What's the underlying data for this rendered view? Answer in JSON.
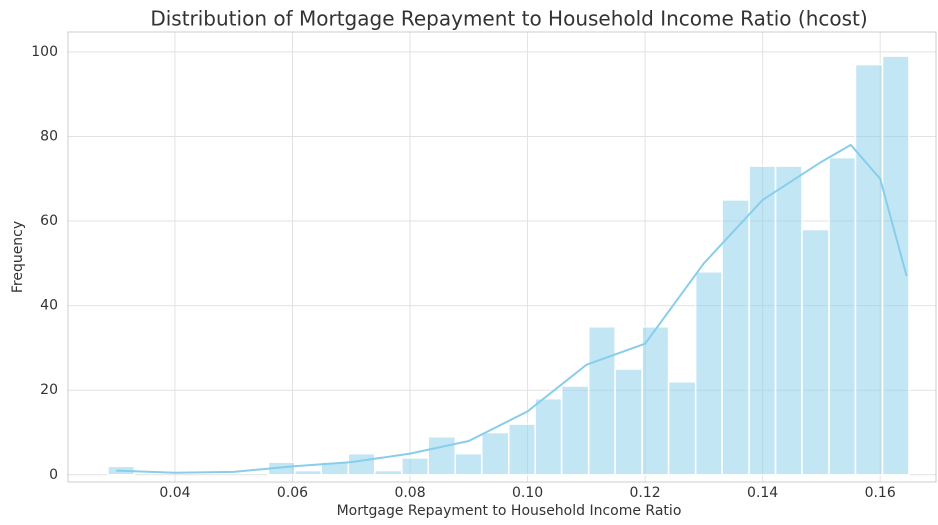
{
  "chart_data": {
    "type": "histogram",
    "title": "Distribution of Mortgage Repayment to Household Income Ratio (hcost)",
    "xlabel": "Mortgage Repayment to Household Income Ratio",
    "ylabel": "Frequency",
    "bins": [
      0.0286,
      0.0331,
      0.0377,
      0.0422,
      0.0468,
      0.0513,
      0.0559,
      0.0604,
      0.0649,
      0.0695,
      0.074,
      0.0786,
      0.0831,
      0.0877,
      0.0922,
      0.0968,
      0.1013,
      0.1058,
      0.1104,
      0.1149,
      0.1195,
      0.124,
      0.1286,
      0.1331,
      0.1377,
      0.1422,
      0.1467,
      0.1513,
      0.1558,
      0.1604,
      0.1649
    ],
    "counts": [
      2,
      0,
      0,
      0,
      0,
      0,
      3,
      1,
      3,
      5,
      1,
      4,
      9,
      5,
      10,
      12,
      18,
      21,
      35,
      25,
      35,
      22,
      48,
      65,
      73,
      73,
      58,
      75,
      97,
      99
    ],
    "color": "#87ceeb",
    "kde": {
      "color": "#87ceeb",
      "x": [
        0.03,
        0.04,
        0.05,
        0.06,
        0.07,
        0.08,
        0.09,
        0.1,
        0.11,
        0.12,
        0.13,
        0.14,
        0.15,
        0.155,
        0.16,
        0.1645
      ],
      "values": [
        1,
        0.5,
        0.7,
        2,
        3,
        5,
        8,
        15,
        26,
        31,
        50,
        65,
        74,
        78,
        70,
        47
      ]
    },
    "xlim": [
      0.0218,
      0.1695
    ],
    "ylim": [
      -1.7,
      104.7
    ],
    "xticks": [
      0.04,
      0.06,
      0.08,
      {
        "value": 0.1,
        "label": "0.10"
      },
      0.12,
      0.14,
      0.16
    ],
    "yticks": [
      0,
      20,
      40,
      60,
      80,
      100
    ],
    "grid": true
  }
}
